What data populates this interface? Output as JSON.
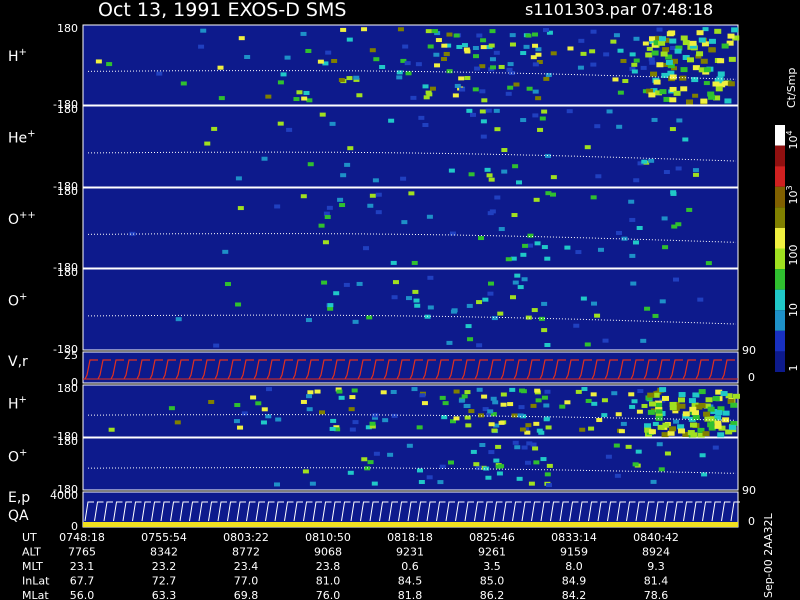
{
  "header": {
    "title": "Oct 13, 1991    EXOS-D SMS",
    "file": "s1101303.par  07:48:18"
  },
  "panels": [
    {
      "label": "H",
      "sup": "+",
      "top": "180",
      "bottom": "-180"
    },
    {
      "label": "He",
      "sup": "+",
      "top": "180",
      "bottom": "-180"
    },
    {
      "label": "O",
      "sup": "++",
      "top": "180",
      "bottom": "-180"
    },
    {
      "label": "O",
      "sup": "+",
      "top": "180",
      "bottom": "-180"
    },
    {
      "label": "V,r",
      "top": "25",
      "bottom": "0",
      "right_top": "90",
      "right_bottom": "0"
    },
    {
      "label": "H",
      "sup": "+",
      "top": "180",
      "bottom": "-180"
    },
    {
      "label": "O",
      "sup": "+",
      "top": "180",
      "bottom": "-180"
    },
    {
      "label": "E,p",
      "label2": "QA",
      "top": "4000",
      "bottom": "0",
      "right_top": "90",
      "right_bottom": "0"
    }
  ],
  "colorbar": {
    "unit": "Ct/Smp",
    "labels": [
      {
        "base": "10",
        "sup": "4"
      },
      {
        "base": "10",
        "sup": "3"
      },
      {
        "base": "100"
      },
      {
        "base": "10"
      },
      {
        "base": "1"
      }
    ]
  },
  "table": {
    "rows": [
      [
        "UT",
        "0748:18",
        "0755:54",
        "0803:22",
        "0810:50",
        "0818:18",
        "0825:46",
        "0833:14",
        "0840:42"
      ],
      [
        "ALT",
        "7765",
        "8342",
        "8772",
        "9068",
        "9231",
        "9261",
        "9159",
        "8924"
      ],
      [
        "MLT",
        "23.1",
        "23.2",
        "23.4",
        "23.8",
        "0.6",
        "3.5",
        "8.0",
        "9.3"
      ],
      [
        "InLat",
        "67.7",
        "72.7",
        "77.0",
        "81.0",
        "84.5",
        "85.0",
        "84.9",
        "81.4"
      ],
      [
        "MLat",
        "56.0",
        "63.3",
        "69.8",
        "76.0",
        "81.8",
        "86.2",
        "84.2",
        "78.6"
      ]
    ]
  },
  "footer": "Sep-00  2AA32L"
}
